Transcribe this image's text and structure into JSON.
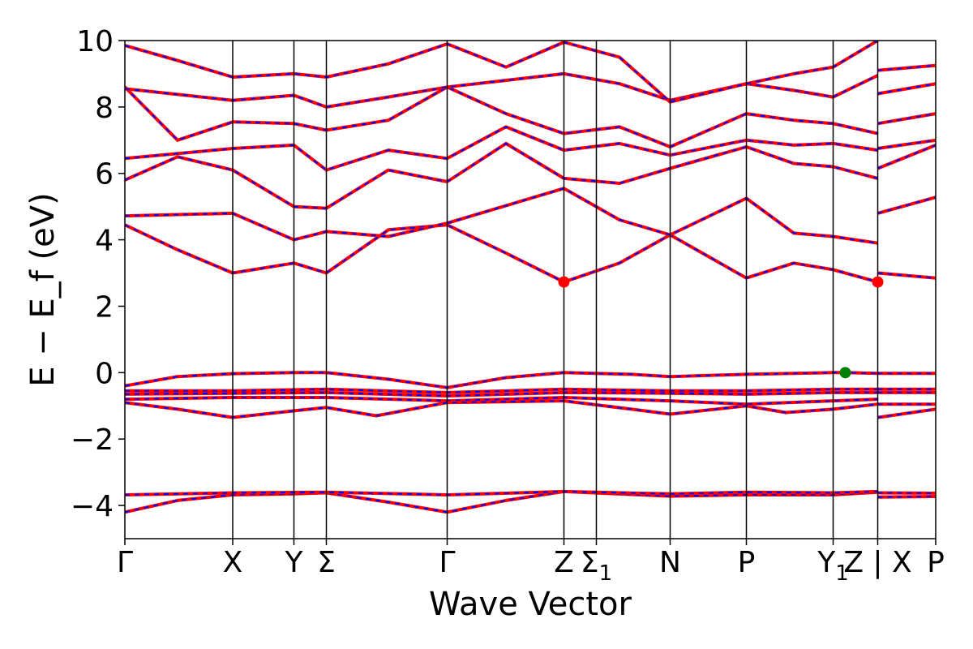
{
  "chart_data": {
    "type": "line",
    "title": "",
    "xlabel": "Wave Vector",
    "ylabel": "E − E_f (eV)",
    "ylim": [
      -5,
      10
    ],
    "yticks": [
      -4,
      -2,
      0,
      2,
      4,
      6,
      8,
      10
    ],
    "ytick_labels": [
      "−4",
      "−2",
      "0",
      "2",
      "4",
      "6",
      "8",
      "10"
    ],
    "grid": false,
    "x_range": [
      0,
      20
    ],
    "high_symmetry_points": [
      {
        "label": "Γ",
        "x": 0.0
      },
      {
        "label": "X",
        "x": 2.66
      },
      {
        "label": "Y",
        "x": 4.17
      },
      {
        "label": "Σ",
        "x": 4.97
      },
      {
        "label": "Γ",
        "x": 7.95
      },
      {
        "label": "Z",
        "x": 10.83
      },
      {
        "label": "Σ1",
        "x": 11.63
      },
      {
        "label": "N",
        "x": 13.45
      },
      {
        "label": "P",
        "x": 15.33
      },
      {
        "label": "Y1",
        "x": 17.47
      },
      {
        "label": "Z | X",
        "x": 18.57
      },
      {
        "label": "P",
        "x": 20.0
      }
    ],
    "segment_breaks": [
      18.57
    ],
    "series_styles": {
      "primary": {
        "color": "#ff0000",
        "style": "solid"
      },
      "overlay": {
        "color": "#0000ff",
        "style": "dashed"
      }
    },
    "markers": [
      {
        "x": 10.83,
        "y": 2.73,
        "color": "#ff0000"
      },
      {
        "x": 18.57,
        "y": 2.73,
        "color": "#ff0000"
      },
      {
        "x": 17.77,
        "y": 0.0,
        "color": "#008000"
      }
    ],
    "bands": [
      {
        "points": [
          [
            0,
            -4.2
          ],
          [
            1.3,
            -3.85
          ],
          [
            2.66,
            -3.68
          ],
          [
            4.17,
            -3.65
          ],
          [
            4.97,
            -3.62
          ],
          [
            6.5,
            -3.9
          ],
          [
            7.95,
            -4.2
          ],
          [
            9.4,
            -3.85
          ],
          [
            10.83,
            -3.58
          ],
          [
            13.45,
            -3.72
          ],
          [
            15.33,
            -3.68
          ],
          [
            17.47,
            -3.68
          ],
          [
            18.57,
            -3.6
          ],
          [
            18.57,
            -3.75
          ],
          [
            20,
            -3.73
          ]
        ]
      },
      {
        "points": [
          [
            0,
            -3.68
          ],
          [
            2.66,
            -3.62
          ],
          [
            4.97,
            -3.6
          ],
          [
            7.95,
            -3.68
          ],
          [
            10.83,
            -3.58
          ],
          [
            13.45,
            -3.65
          ],
          [
            15.33,
            -3.6
          ],
          [
            17.47,
            -3.62
          ],
          [
            18.57,
            -3.58
          ],
          [
            18.57,
            -3.62
          ],
          [
            20,
            -3.63
          ]
        ]
      },
      {
        "points": [
          [
            0,
            -0.4
          ],
          [
            1.3,
            -0.12
          ],
          [
            2.66,
            -0.03
          ],
          [
            4.17,
            0.0
          ],
          [
            4.97,
            0.0
          ],
          [
            6.5,
            -0.2
          ],
          [
            7.95,
            -0.45
          ],
          [
            9.4,
            -0.15
          ],
          [
            10.83,
            0.0
          ],
          [
            12.5,
            -0.05
          ],
          [
            13.45,
            -0.12
          ],
          [
            15.33,
            -0.05
          ],
          [
            17.47,
            0.0
          ],
          [
            17.77,
            0.0
          ],
          [
            18.57,
            -0.02
          ],
          [
            18.57,
            -0.02
          ],
          [
            20,
            -0.02
          ]
        ]
      },
      {
        "points": [
          [
            0,
            -0.55
          ],
          [
            2.66,
            -0.55
          ],
          [
            4.97,
            -0.5
          ],
          [
            7.95,
            -0.6
          ],
          [
            10.83,
            -0.5
          ],
          [
            13.45,
            -0.55
          ],
          [
            15.33,
            -0.55
          ],
          [
            17.47,
            -0.5
          ],
          [
            18.57,
            -0.5
          ],
          [
            18.57,
            -0.5
          ],
          [
            20,
            -0.5
          ]
        ]
      },
      {
        "points": [
          [
            0,
            -0.65
          ],
          [
            2.66,
            -0.62
          ],
          [
            4.97,
            -0.6
          ],
          [
            7.95,
            -0.7
          ],
          [
            10.83,
            -0.6
          ],
          [
            13.45,
            -0.62
          ],
          [
            15.33,
            -0.65
          ],
          [
            17.47,
            -0.6
          ],
          [
            18.57,
            -0.6
          ],
          [
            18.57,
            -0.6
          ],
          [
            20,
            -0.6
          ]
        ]
      },
      {
        "points": [
          [
            0,
            -0.8
          ],
          [
            2.66,
            -0.75
          ],
          [
            4.97,
            -0.75
          ],
          [
            7.95,
            -0.85
          ],
          [
            10.83,
            -0.75
          ],
          [
            13.45,
            -0.85
          ],
          [
            15.33,
            -0.95
          ],
          [
            17.47,
            -0.85
          ],
          [
            18.57,
            -0.8
          ],
          [
            18.57,
            -0.95
          ],
          [
            20,
            -0.95
          ]
        ]
      },
      {
        "points": [
          [
            0,
            -0.9
          ],
          [
            1.3,
            -1.1
          ],
          [
            2.66,
            -1.35
          ],
          [
            4.17,
            -1.15
          ],
          [
            4.97,
            -1.05
          ],
          [
            6.2,
            -1.3
          ],
          [
            7.95,
            -0.9
          ],
          [
            10.83,
            -0.85
          ],
          [
            12.5,
            -1.1
          ],
          [
            13.45,
            -1.25
          ],
          [
            15.33,
            -1.0
          ],
          [
            16.3,
            -1.2
          ],
          [
            17.47,
            -1.1
          ],
          [
            18.57,
            -0.95
          ],
          [
            18.57,
            -1.35
          ],
          [
            20,
            -1.1
          ]
        ]
      },
      {
        "points": [
          [
            0,
            4.45
          ],
          [
            1.3,
            3.7
          ],
          [
            2.66,
            3.0
          ],
          [
            4.17,
            3.3
          ],
          [
            4.97,
            3.0
          ],
          [
            6.5,
            4.3
          ],
          [
            7.95,
            4.45
          ],
          [
            9.4,
            3.6
          ],
          [
            10.83,
            2.73
          ],
          [
            12.2,
            3.3
          ],
          [
            13.45,
            4.15
          ],
          [
            15.33,
            2.85
          ],
          [
            16.5,
            3.3
          ],
          [
            17.47,
            3.1
          ],
          [
            18.57,
            2.73
          ],
          [
            18.57,
            3.0
          ],
          [
            20,
            2.85
          ]
        ]
      },
      {
        "points": [
          [
            0,
            4.72
          ],
          [
            2.66,
            4.8
          ],
          [
            4.17,
            4.0
          ],
          [
            4.97,
            4.25
          ],
          [
            6.5,
            4.1
          ],
          [
            7.95,
            4.5
          ],
          [
            10.83,
            5.55
          ],
          [
            12.2,
            4.6
          ],
          [
            13.45,
            4.15
          ],
          [
            15.33,
            5.25
          ],
          [
            16.5,
            4.2
          ],
          [
            17.47,
            4.1
          ],
          [
            18.57,
            3.9
          ],
          [
            18.57,
            4.8
          ],
          [
            20,
            5.28
          ]
        ]
      },
      {
        "points": [
          [
            0,
            5.8
          ],
          [
            1.3,
            6.5
          ],
          [
            2.66,
            6.1
          ],
          [
            4.17,
            5.0
          ],
          [
            4.97,
            4.95
          ],
          [
            6.5,
            6.1
          ],
          [
            7.95,
            5.75
          ],
          [
            9.4,
            6.9
          ],
          [
            10.83,
            5.85
          ],
          [
            12.2,
            5.7
          ],
          [
            13.45,
            6.15
          ],
          [
            15.33,
            6.8
          ],
          [
            16.5,
            6.3
          ],
          [
            17.47,
            6.2
          ],
          [
            18.57,
            5.85
          ],
          [
            18.57,
            6.15
          ],
          [
            20,
            6.85
          ]
        ]
      },
      {
        "points": [
          [
            0,
            6.45
          ],
          [
            2.66,
            6.75
          ],
          [
            4.17,
            6.85
          ],
          [
            4.97,
            6.1
          ],
          [
            6.5,
            6.7
          ],
          [
            7.95,
            6.45
          ],
          [
            9.4,
            7.4
          ],
          [
            10.83,
            6.7
          ],
          [
            12.2,
            6.9
          ],
          [
            13.45,
            6.55
          ],
          [
            15.33,
            7.0
          ],
          [
            16.5,
            6.85
          ],
          [
            17.47,
            6.9
          ],
          [
            18.57,
            6.7
          ],
          [
            18.57,
            6.75
          ],
          [
            20,
            7.0
          ]
        ]
      },
      {
        "points": [
          [
            0,
            8.6
          ],
          [
            1.3,
            7.0
          ],
          [
            2.66,
            7.55
          ],
          [
            4.17,
            7.5
          ],
          [
            4.97,
            7.3
          ],
          [
            6.5,
            7.6
          ],
          [
            7.95,
            8.6
          ],
          [
            9.4,
            7.8
          ],
          [
            10.83,
            7.2
          ],
          [
            12.2,
            7.4
          ],
          [
            13.45,
            6.8
          ],
          [
            15.33,
            7.8
          ],
          [
            16.5,
            7.6
          ],
          [
            17.47,
            7.5
          ],
          [
            18.57,
            7.2
          ],
          [
            18.57,
            7.5
          ],
          [
            20,
            7.8
          ]
        ]
      },
      {
        "points": [
          [
            0,
            8.55
          ],
          [
            2.66,
            8.2
          ],
          [
            4.17,
            8.35
          ],
          [
            4.97,
            8.0
          ],
          [
            6.5,
            8.3
          ],
          [
            7.95,
            8.6
          ],
          [
            10.83,
            9.0
          ],
          [
            12.2,
            8.7
          ],
          [
            13.45,
            8.2
          ],
          [
            15.33,
            8.7
          ],
          [
            16.5,
            8.5
          ],
          [
            17.47,
            8.3
          ],
          [
            18.57,
            8.95
          ],
          [
            18.57,
            8.4
          ],
          [
            20,
            8.7
          ]
        ]
      },
      {
        "points": [
          [
            0,
            9.85
          ],
          [
            1.3,
            9.4
          ],
          [
            2.66,
            8.9
          ],
          [
            4.17,
            9.0
          ],
          [
            4.97,
            8.9
          ],
          [
            6.5,
            9.3
          ],
          [
            7.95,
            9.9
          ],
          [
            9.4,
            9.2
          ],
          [
            10.83,
            9.95
          ],
          [
            12.2,
            9.5
          ],
          [
            13.45,
            8.15
          ],
          [
            15.33,
            8.7
          ],
          [
            16.5,
            9.0
          ],
          [
            17.47,
            9.2
          ],
          [
            18.57,
            10.0
          ],
          [
            18.57,
            9.1
          ],
          [
            20,
            9.25
          ]
        ]
      }
    ]
  }
}
